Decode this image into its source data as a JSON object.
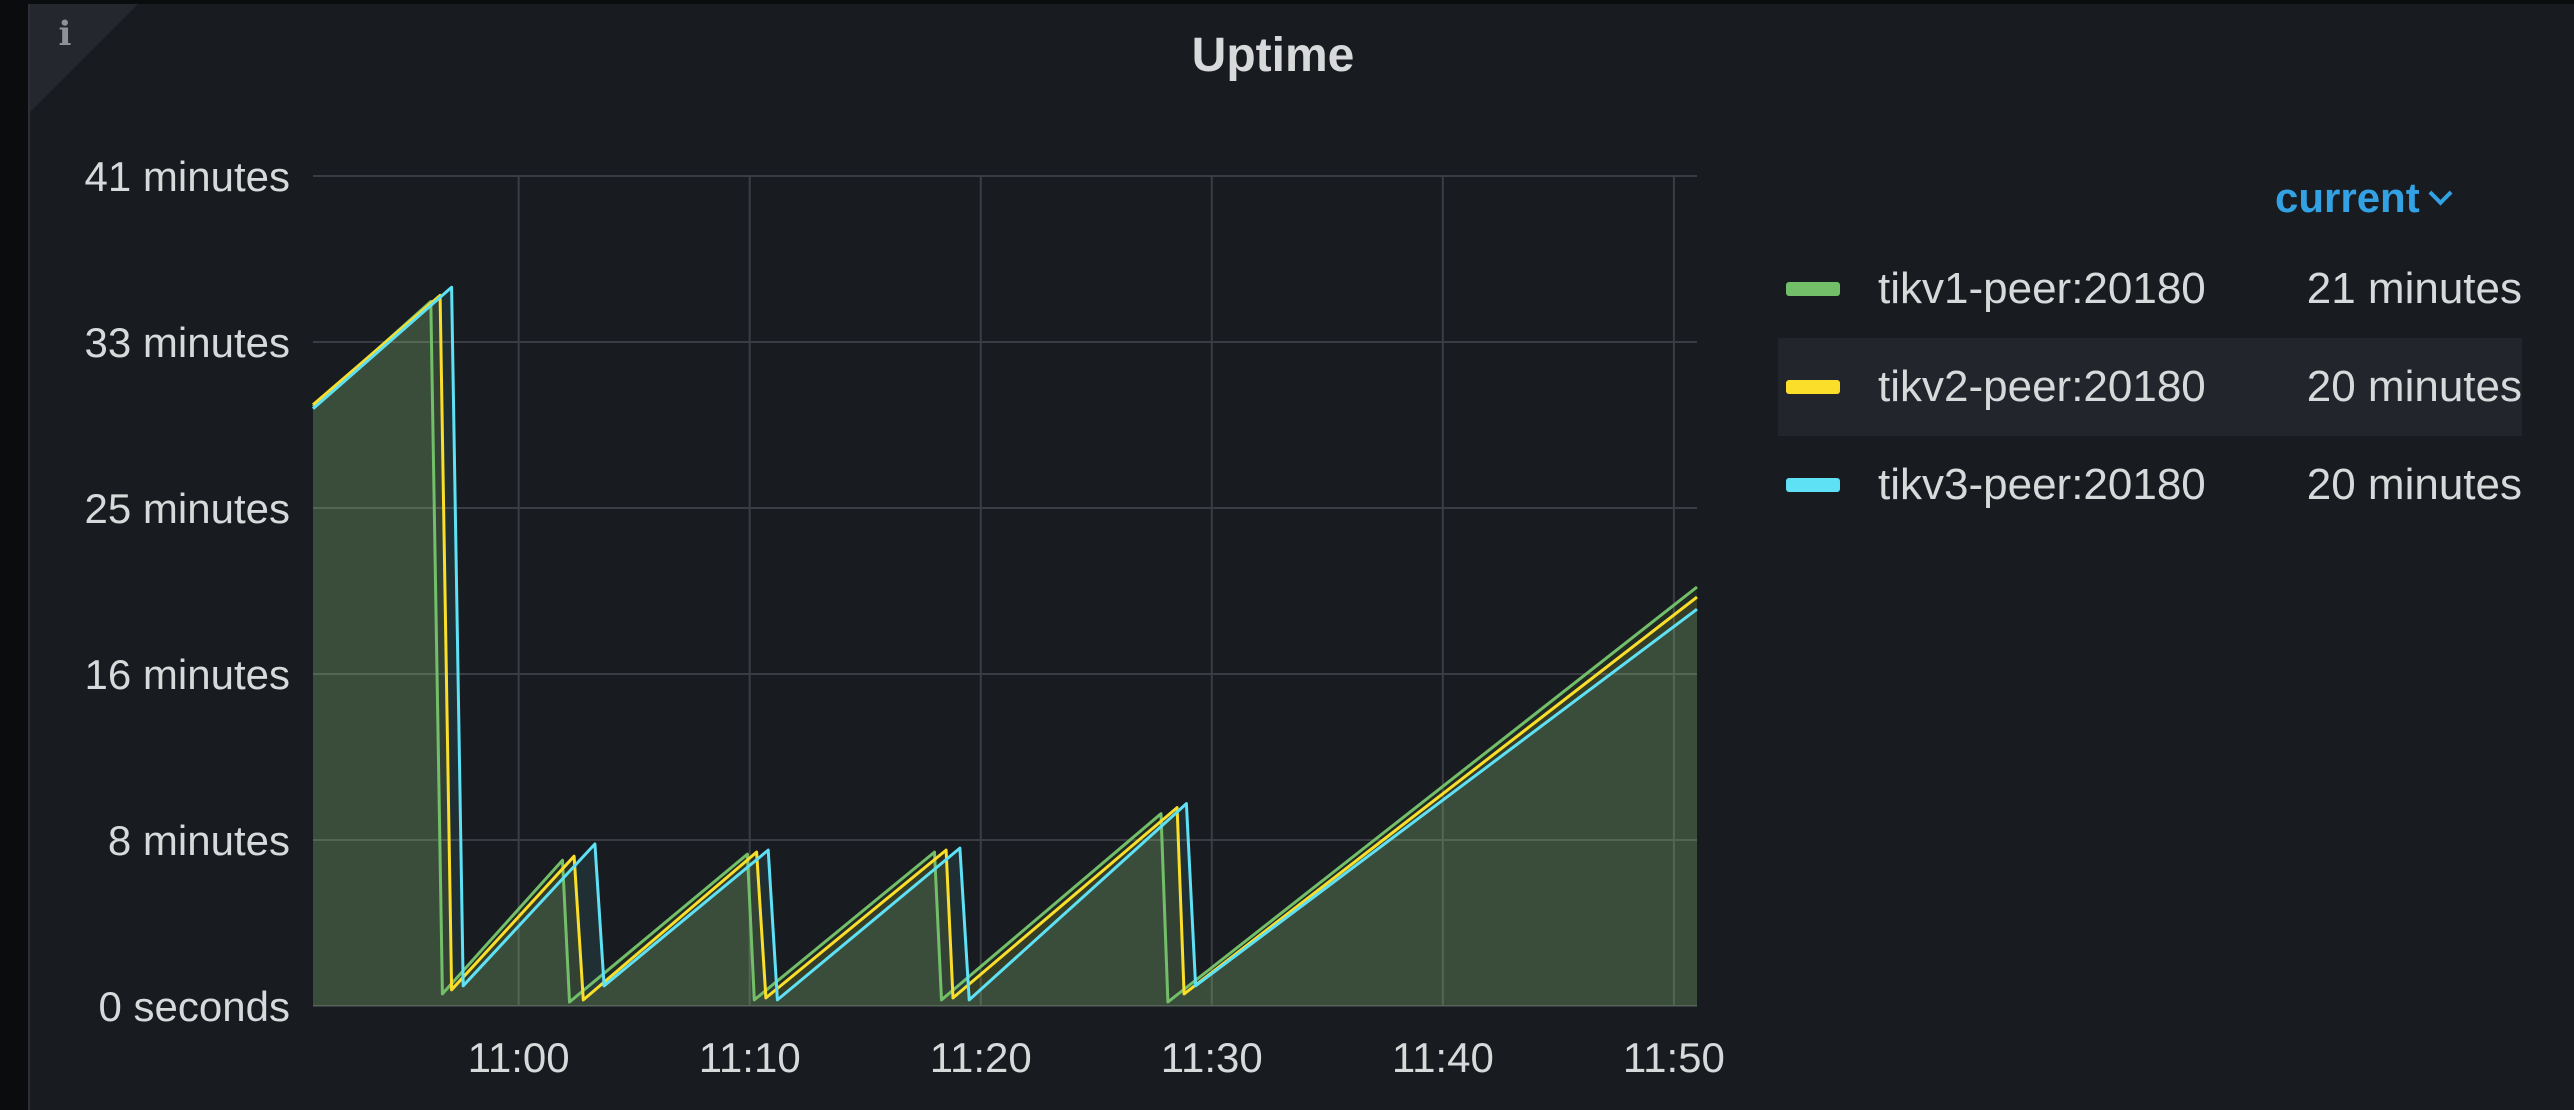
{
  "panel": {
    "title": "Uptime",
    "info_icon": "info-icon",
    "colors": {
      "background": "#181b1f",
      "grid": "#3a3d43",
      "text": "#d8d9da",
      "accent": "#33a2e5"
    }
  },
  "legend": {
    "header": "current",
    "items": [
      {
        "name": "tikv1-peer:20180",
        "value": "21 minutes",
        "color": "#73bf69"
      },
      {
        "name": "tikv2-peer:20180",
        "value": "20 minutes",
        "color": "#fade2a"
      },
      {
        "name": "tikv3-peer:20180",
        "value": "20 minutes",
        "color": "#5ee0f5"
      }
    ]
  },
  "chart_data": {
    "type": "line",
    "title": "Uptime",
    "xlabel": "",
    "ylabel": "",
    "x_ticks": [
      "11:00",
      "11:10",
      "11:20",
      "11:30",
      "11:40",
      "11:50"
    ],
    "y_ticks": [
      "0 seconds",
      "8 minutes",
      "16 minutes",
      "25 minutes",
      "33 minutes",
      "41 minutes"
    ],
    "x_unit": "minutes past 10:00",
    "y_unit": "minutes",
    "xlim": [
      51.1,
      111.0
    ],
    "ylim": [
      0,
      41
    ],
    "grid": true,
    "legend_placement": "right",
    "legend_mode": "current",
    "series": [
      {
        "name": "tikv1-peer:20180",
        "color": "#73bf69",
        "points": [
          [
            51.1,
            29.6
          ],
          [
            56.2,
            34.8
          ],
          [
            56.7,
            0.6
          ],
          [
            61.9,
            7.2
          ],
          [
            62.2,
            0.2
          ],
          [
            69.9,
            7.5
          ],
          [
            70.2,
            0.3
          ],
          [
            78.0,
            7.6
          ],
          [
            78.3,
            0.3
          ],
          [
            87.8,
            9.5
          ],
          [
            88.1,
            0.2
          ],
          [
            111.0,
            20.7
          ]
        ]
      },
      {
        "name": "tikv2-peer:20180",
        "color": "#fade2a",
        "points": [
          [
            51.1,
            29.7
          ],
          [
            56.6,
            35.1
          ],
          [
            57.1,
            0.8
          ],
          [
            62.4,
            7.4
          ],
          [
            62.8,
            0.3
          ],
          [
            70.3,
            7.6
          ],
          [
            70.7,
            0.4
          ],
          [
            78.5,
            7.7
          ],
          [
            78.8,
            0.4
          ],
          [
            88.5,
            9.8
          ],
          [
            88.8,
            0.6
          ],
          [
            111.0,
            20.2
          ]
        ]
      },
      {
        "name": "tikv3-peer:20180",
        "color": "#5ee0f5",
        "points": [
          [
            51.1,
            29.5
          ],
          [
            57.1,
            35.5
          ],
          [
            57.6,
            1.0
          ],
          [
            63.3,
            8.0
          ],
          [
            63.7,
            1.0
          ],
          [
            70.8,
            7.7
          ],
          [
            71.2,
            0.3
          ],
          [
            79.1,
            7.8
          ],
          [
            79.5,
            0.3
          ],
          [
            88.9,
            10.0
          ],
          [
            89.3,
            1.0
          ],
          [
            111.0,
            19.6
          ]
        ]
      }
    ]
  }
}
